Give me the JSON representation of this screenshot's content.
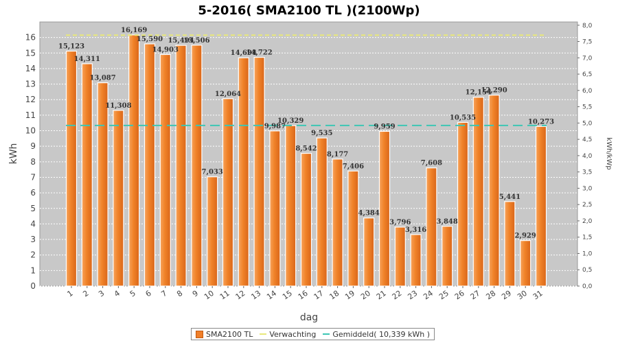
{
  "chart_data": {
    "type": "bar",
    "title": "5-2016( SMA2100 TL )(2100Wp)",
    "xlabel": "dag",
    "ylabel": "kWh",
    "y2label": "kWh/kWp",
    "ylim": [
      0,
      17
    ],
    "y2lim": [
      0,
      8.1
    ],
    "yticks": [
      "0",
      "1",
      "2",
      "3",
      "4",
      "5",
      "6",
      "7",
      "8",
      "9",
      "10",
      "11",
      "12",
      "13",
      "14",
      "15",
      "16"
    ],
    "y2ticks": [
      "0,0",
      "0,5",
      "1,0",
      "1,5",
      "2,0",
      "2,5",
      "3,0",
      "3,5",
      "4,0",
      "4,5",
      "5,0",
      "5,5",
      "6,0",
      "6,5",
      "7,0",
      "7,5",
      "8,0"
    ],
    "categories": [
      "1",
      "2",
      "3",
      "4",
      "5",
      "6",
      "7",
      "8",
      "9",
      "10",
      "11",
      "12",
      "13",
      "14",
      "15",
      "16",
      "17",
      "18",
      "19",
      "20",
      "21",
      "22",
      "23",
      "24",
      "25",
      "26",
      "27",
      "28",
      "29",
      "30",
      "31"
    ],
    "series": [
      {
        "name": "SMA2100 TL",
        "values": [
          15.123,
          14.311,
          13.087,
          11.308,
          16.169,
          15.59,
          14.903,
          15.494,
          15.506,
          7.033,
          12.064,
          14.694,
          14.722,
          9.987,
          10.329,
          8.542,
          9.535,
          8.177,
          7.406,
          4.384,
          9.959,
          3.796,
          3.316,
          7.608,
          3.848,
          10.535,
          12.154,
          12.29,
          5.441,
          2.929,
          10.273
        ],
        "labels": [
          "15,123",
          "14,311",
          "13,087",
          "11,308",
          "16,169",
          "15,590",
          "14,903",
          "15,494",
          "15,506",
          "7,033",
          "12,064",
          "14,694",
          "14,722",
          "9,987",
          "10,329",
          "8,542",
          "9,535",
          "8,177",
          "7,406",
          "4,384",
          "9,959",
          "3,796",
          "3,316",
          "7,608",
          "3,848",
          "10,535",
          "12,154",
          "12,290",
          "5,441",
          "2,929",
          "10,273"
        ],
        "color": "#f07f2a"
      }
    ],
    "expected": {
      "name": "Verwachting",
      "value": 16.15,
      "color": "#e8e87a"
    },
    "average": {
      "name": "Gemiddeld( 10,339 kWh )",
      "value": 10.339,
      "color": "#3cc6b4"
    },
    "grid": true,
    "legend_position": "bottom",
    "background_color": "#c8c8c8"
  }
}
